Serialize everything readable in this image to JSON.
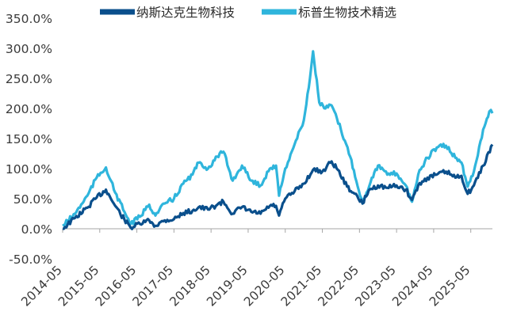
{
  "chart_data": {
    "type": "line",
    "title": "",
    "xlabel": "",
    "ylabel": "",
    "legend_position": "top-center",
    "grid": false,
    "y_axis": {
      "min": -50,
      "max": 350,
      "tick_labels": [
        "350.0%",
        "300.0%",
        "250.0%",
        "200.0%",
        "150.0%",
        "100.0%",
        "50.0%",
        "0.0%",
        "-50.0%"
      ],
      "tick_values": [
        350,
        300,
        250,
        200,
        150,
        100,
        50,
        0,
        -50
      ]
    },
    "x_axis": {
      "tick_labels": [
        "2014-05",
        "2015-05",
        "2016-05",
        "2017-05",
        "2018-05",
        "2019-05",
        "2020-05",
        "2021-05",
        "2022-05",
        "2023-05",
        "2024-05",
        "2025-05"
      ],
      "range": [
        "2014-05",
        "2025-12"
      ]
    },
    "series": [
      {
        "name": "纳斯达克生物科技",
        "color": "#0a4f8c",
        "points": [
          [
            "2014-05",
            0
          ],
          [
            "2014-09",
            18
          ],
          [
            "2015-01",
            35
          ],
          [
            "2015-04",
            52
          ],
          [
            "2015-07",
            65
          ],
          [
            "2015-10",
            38
          ],
          [
            "2016-01",
            15
          ],
          [
            "2016-03",
            2
          ],
          [
            "2016-06",
            8
          ],
          [
            "2016-09",
            14
          ],
          [
            "2016-11",
            5
          ],
          [
            "2017-02",
            14
          ],
          [
            "2017-05",
            16
          ],
          [
            "2017-08",
            26
          ],
          [
            "2017-11",
            30
          ],
          [
            "2018-01",
            36
          ],
          [
            "2018-04",
            32
          ],
          [
            "2018-07",
            40
          ],
          [
            "2018-09",
            45
          ],
          [
            "2018-12",
            25
          ],
          [
            "2019-03",
            36
          ],
          [
            "2019-06",
            28
          ],
          [
            "2019-09",
            25
          ],
          [
            "2019-12",
            38
          ],
          [
            "2020-02",
            38
          ],
          [
            "2020-03",
            22
          ],
          [
            "2020-05",
            50
          ],
          [
            "2020-08",
            62
          ],
          [
            "2020-11",
            75
          ],
          [
            "2021-02",
            98
          ],
          [
            "2021-05",
            95
          ],
          [
            "2021-08",
            112
          ],
          [
            "2021-10",
            98
          ],
          [
            "2022-01",
            70
          ],
          [
            "2022-03",
            60
          ],
          [
            "2022-06",
            42
          ],
          [
            "2022-08",
            64
          ],
          [
            "2022-11",
            72
          ],
          [
            "2023-02",
            68
          ],
          [
            "2023-05",
            72
          ],
          [
            "2023-08",
            65
          ],
          [
            "2023-10",
            48
          ],
          [
            "2023-12",
            72
          ],
          [
            "2024-03",
            85
          ],
          [
            "2024-06",
            90
          ],
          [
            "2024-09",
            95
          ],
          [
            "2024-12",
            85
          ],
          [
            "2025-02",
            88
          ],
          [
            "2025-04",
            58
          ],
          [
            "2025-06",
            72
          ],
          [
            "2025-09",
            105
          ],
          [
            "2025-12",
            140
          ]
        ]
      },
      {
        "name": "标普生物技术精选",
        "color": "#2fb5dc",
        "points": [
          [
            "2014-05",
            5
          ],
          [
            "2014-09",
            25
          ],
          [
            "2015-01",
            55
          ],
          [
            "2015-04",
            85
          ],
          [
            "2015-07",
            102
          ],
          [
            "2015-10",
            60
          ],
          [
            "2016-01",
            28
          ],
          [
            "2016-03",
            8
          ],
          [
            "2016-06",
            20
          ],
          [
            "2016-09",
            40
          ],
          [
            "2016-11",
            22
          ],
          [
            "2017-02",
            42
          ],
          [
            "2017-05",
            50
          ],
          [
            "2017-08",
            75
          ],
          [
            "2017-11",
            90
          ],
          [
            "2018-01",
            110
          ],
          [
            "2018-04",
            100
          ],
          [
            "2018-07",
            120
          ],
          [
            "2018-09",
            128
          ],
          [
            "2018-12",
            80
          ],
          [
            "2019-03",
            105
          ],
          [
            "2019-06",
            80
          ],
          [
            "2019-09",
            72
          ],
          [
            "2019-12",
            100
          ],
          [
            "2020-02",
            105
          ],
          [
            "2020-03",
            55
          ],
          [
            "2020-05",
            100
          ],
          [
            "2020-08",
            140
          ],
          [
            "2020-11",
            180
          ],
          [
            "2021-01",
            250
          ],
          [
            "2021-02",
            295
          ],
          [
            "2021-04",
            210
          ],
          [
            "2021-06",
            200
          ],
          [
            "2021-08",
            205
          ],
          [
            "2021-11",
            165
          ],
          [
            "2022-02",
            120
          ],
          [
            "2022-06",
            42
          ],
          [
            "2022-09",
            85
          ],
          [
            "2022-11",
            105
          ],
          [
            "2023-02",
            90
          ],
          [
            "2023-05",
            92
          ],
          [
            "2023-08",
            72
          ],
          [
            "2023-10",
            45
          ],
          [
            "2023-12",
            90
          ],
          [
            "2024-03",
            118
          ],
          [
            "2024-06",
            135
          ],
          [
            "2024-09",
            138
          ],
          [
            "2024-12",
            118
          ],
          [
            "2025-02",
            110
          ],
          [
            "2025-04",
            70
          ],
          [
            "2025-06",
            95
          ],
          [
            "2025-09",
            165
          ],
          [
            "2025-11",
            195
          ],
          [
            "2025-12",
            192
          ]
        ]
      }
    ]
  }
}
